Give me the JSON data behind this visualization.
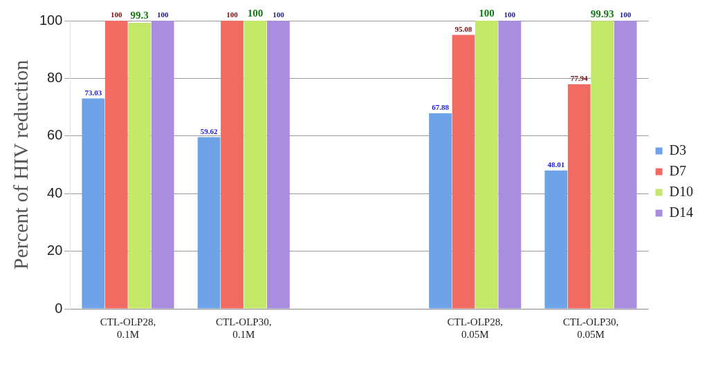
{
  "chart_data": {
    "type": "bar",
    "ylabel": "Percent of HIV reduction",
    "categories": [
      "CTL-OLP28, 0.1M",
      "CTL-OLP30, 0.1M",
      null,
      "CTL-OLP28, 0.05M",
      "CTL-OLP30, 0.05M"
    ],
    "series": [
      {
        "name": "D3",
        "color": "#6fa3e8",
        "values": [
          73.03,
          59.62,
          null,
          67.88,
          48.01
        ]
      },
      {
        "name": "D7",
        "color": "#f26b63",
        "values": [
          100,
          100,
          null,
          95.08,
          77.94
        ]
      },
      {
        "name": "D10",
        "color": "#c3e86a",
        "values": [
          99.3,
          100,
          null,
          100,
          99.93
        ]
      },
      {
        "name": "D14",
        "color": "#a98ee0",
        "values": [
          100,
          100,
          null,
          100,
          100
        ]
      }
    ],
    "ylim": [
      0,
      100
    ],
    "yticks": [
      0,
      20,
      40,
      60,
      80,
      100
    ],
    "grid": "y",
    "legend": "right",
    "data_labels": true
  }
}
